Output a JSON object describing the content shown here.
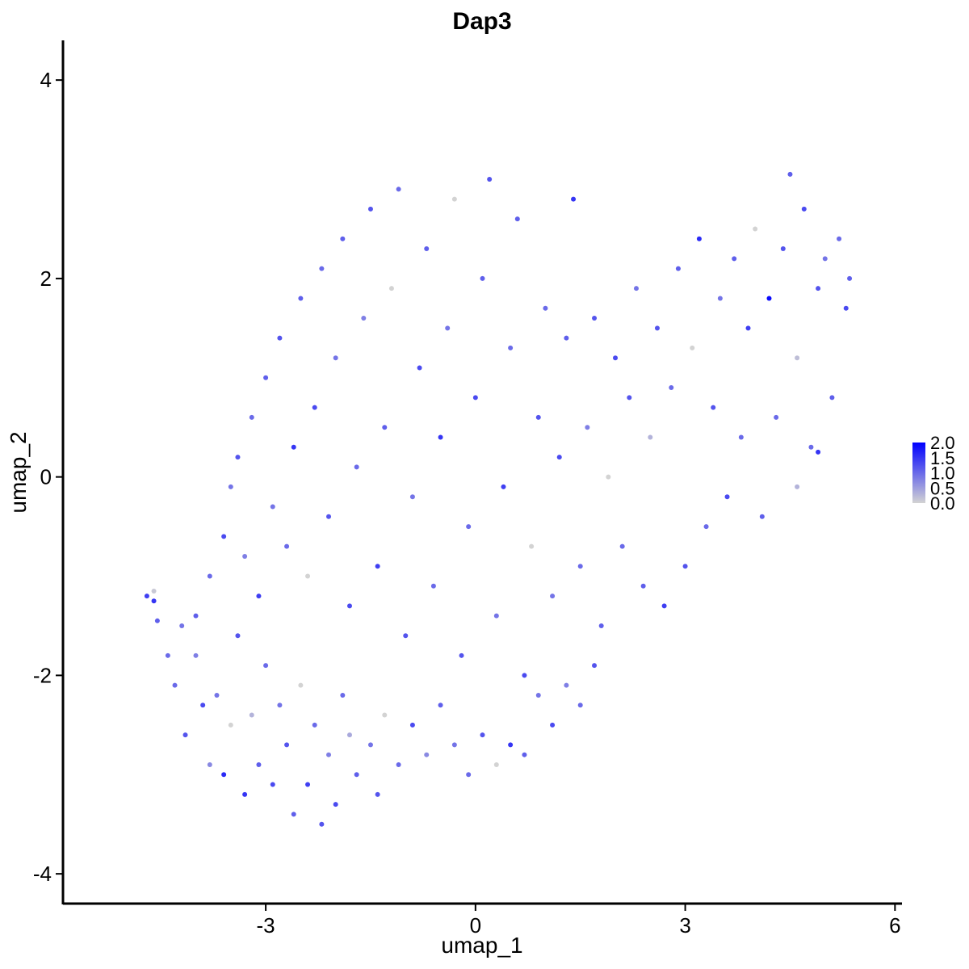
{
  "chart_data": {
    "type": "scatter",
    "title": "Dap3",
    "xlabel": "umap_1",
    "ylabel": "umap_2",
    "xlim": [
      -5.9,
      6.1
    ],
    "ylim": [
      -4.3,
      4.4
    ],
    "x_ticks": [
      -3,
      0,
      3,
      6
    ],
    "y_ticks": [
      -4,
      -2,
      0,
      2,
      4
    ],
    "x_tick_labels": [
      "-3",
      "0",
      "3",
      "6"
    ],
    "y_tick_labels": [
      "-4",
      "-2",
      "0",
      "2",
      "4"
    ],
    "grid": false,
    "legend": {
      "placement": "right",
      "type": "colorbar",
      "min": 0.0,
      "max": 2.0,
      "labels": [
        "2.0",
        "1.5",
        "1.0",
        "0.5",
        "0.0"
      ],
      "low_color": "#d3d3d3",
      "high_color": "#0000ff"
    },
    "colors": {
      "low": "#d3d3d3",
      "high": "#0000ff"
    },
    "points": [
      [
        -4.7,
        -1.2,
        1.4
      ],
      [
        -4.6,
        -1.15,
        0.1
      ],
      [
        -4.6,
        -1.25,
        1.5
      ],
      [
        -4.55,
        -1.45,
        1.1
      ],
      [
        -4.4,
        -1.8,
        1.0
      ],
      [
        -4.3,
        -2.1,
        1.0
      ],
      [
        -4.2,
        -1.5,
        0.9
      ],
      [
        -4.15,
        -2.6,
        1.2
      ],
      [
        -4.0,
        -1.8,
        0.8
      ],
      [
        -3.9,
        -2.3,
        1.3
      ],
      [
        -3.8,
        -2.9,
        0.7
      ],
      [
        -3.7,
        -2.2,
        0.9
      ],
      [
        -3.6,
        -3.0,
        1.6
      ],
      [
        -3.5,
        -2.5,
        0.0
      ],
      [
        -3.4,
        -1.6,
        1.2
      ],
      [
        -3.3,
        -3.2,
        1.5
      ],
      [
        -3.2,
        -2.4,
        0.3
      ],
      [
        -3.1,
        -2.9,
        1.1
      ],
      [
        -3.0,
        -1.9,
        1.0
      ],
      [
        -2.9,
        -3.1,
        1.3
      ],
      [
        -2.8,
        -2.3,
        0.9
      ],
      [
        -2.7,
        -2.7,
        1.2
      ],
      [
        -2.6,
        -3.4,
        1.1
      ],
      [
        -2.5,
        -2.1,
        0.0
      ],
      [
        -2.4,
        -3.1,
        1.4
      ],
      [
        -2.3,
        -2.5,
        1.0
      ],
      [
        -2.2,
        -3.5,
        1.2
      ],
      [
        -2.1,
        -2.8,
        0.8
      ],
      [
        -2.0,
        -3.3,
        1.3
      ],
      [
        -1.9,
        -2.2,
        1.0
      ],
      [
        -1.8,
        -2.6,
        0.4
      ],
      [
        -1.7,
        -3.0,
        1.1
      ],
      [
        -1.5,
        -2.7,
        0.9
      ],
      [
        -1.4,
        -3.2,
        1.2
      ],
      [
        -1.3,
        -2.4,
        0.0
      ],
      [
        -1.1,
        -2.9,
        1.0
      ],
      [
        -0.9,
        -2.5,
        1.3
      ],
      [
        -0.7,
        -2.8,
        0.7
      ],
      [
        -0.5,
        -2.3,
        1.1
      ],
      [
        -0.3,
        -2.7,
        0.9
      ],
      [
        -0.1,
        -3.0,
        1.0
      ],
      [
        0.1,
        -2.6,
        1.2
      ],
      [
        0.3,
        -2.9,
        0.0
      ],
      [
        0.5,
        -2.7,
        1.5
      ],
      [
        0.7,
        -2.8,
        1.1
      ],
      [
        0.9,
        -2.2,
        0.9
      ],
      [
        1.1,
        -2.5,
        1.3
      ],
      [
        1.3,
        -2.1,
        0.8
      ],
      [
        1.5,
        -2.3,
        1.0
      ],
      [
        1.7,
        -1.9,
        1.2
      ],
      [
        -4.0,
        -1.4,
        1.1
      ],
      [
        -3.8,
        -1.0,
        1.0
      ],
      [
        -3.6,
        -0.6,
        1.3
      ],
      [
        -3.5,
        -0.1,
        0.9
      ],
      [
        -3.4,
        0.2,
        1.2
      ],
      [
        -3.3,
        -0.8,
        0.8
      ],
      [
        -3.2,
        0.6,
        1.0
      ],
      [
        -3.1,
        -1.2,
        1.4
      ],
      [
        -3.0,
        1.0,
        1.1
      ],
      [
        -2.9,
        -0.3,
        0.9
      ],
      [
        -2.8,
        1.4,
        1.2
      ],
      [
        -2.7,
        -0.7,
        1.0
      ],
      [
        -2.6,
        0.3,
        1.5
      ],
      [
        -2.5,
        1.8,
        1.1
      ],
      [
        -2.4,
        -1.0,
        0.0
      ],
      [
        -2.3,
        0.7,
        1.3
      ],
      [
        -2.2,
        2.1,
        1.0
      ],
      [
        -2.1,
        -0.4,
        1.2
      ],
      [
        -2.0,
        1.2,
        0.9
      ],
      [
        -1.9,
        2.4,
        1.1
      ],
      [
        -1.8,
        -1.3,
        1.3
      ],
      [
        -1.7,
        0.1,
        1.0
      ],
      [
        -1.6,
        1.6,
        0.8
      ],
      [
        -1.5,
        2.7,
        1.2
      ],
      [
        -1.4,
        -0.9,
        1.4
      ],
      [
        -1.3,
        0.5,
        1.1
      ],
      [
        -1.2,
        1.9,
        0.0
      ],
      [
        -1.1,
        2.9,
        1.0
      ],
      [
        -1.0,
        -1.6,
        1.2
      ],
      [
        -0.9,
        -0.2,
        0.9
      ],
      [
        -0.8,
        1.1,
        1.3
      ],
      [
        -0.7,
        2.3,
        1.1
      ],
      [
        -0.6,
        -1.1,
        1.0
      ],
      [
        -0.5,
        0.4,
        1.5
      ],
      [
        -0.4,
        1.5,
        0.9
      ],
      [
        -0.3,
        2.8,
        0.0
      ],
      [
        -0.2,
        -1.8,
        1.2
      ],
      [
        -0.1,
        -0.5,
        1.0
      ],
      [
        0.0,
        0.8,
        1.3
      ],
      [
        0.1,
        2.0,
        1.1
      ],
      [
        0.2,
        3.0,
        1.2
      ],
      [
        0.3,
        -1.4,
        0.9
      ],
      [
        0.4,
        -0.1,
        1.4
      ],
      [
        0.5,
        1.3,
        1.0
      ],
      [
        0.6,
        2.6,
        1.1
      ],
      [
        0.7,
        -2.0,
        1.3
      ],
      [
        0.8,
        -0.7,
        0.0
      ],
      [
        0.9,
        0.6,
        1.2
      ],
      [
        1.0,
        1.7,
        1.0
      ],
      [
        1.1,
        -1.2,
        0.9
      ],
      [
        1.2,
        0.2,
        1.3
      ],
      [
        1.3,
        1.4,
        1.1
      ],
      [
        1.4,
        2.8,
        1.5
      ],
      [
        1.5,
        -0.9,
        1.0
      ],
      [
        1.6,
        0.5,
        0.8
      ],
      [
        1.7,
        1.6,
        1.2
      ],
      [
        1.8,
        -1.5,
        1.1
      ],
      [
        1.9,
        0.0,
        0.0
      ],
      [
        2.0,
        1.2,
        1.3
      ],
      [
        2.1,
        -0.7,
        1.0
      ],
      [
        2.2,
        0.8,
        1.2
      ],
      [
        2.3,
        1.9,
        0.9
      ],
      [
        2.4,
        -1.1,
        1.1
      ],
      [
        2.5,
        0.4,
        0.3
      ],
      [
        2.6,
        1.5,
        1.2
      ],
      [
        2.7,
        -1.3,
        1.4
      ],
      [
        2.8,
        0.9,
        1.0
      ],
      [
        2.9,
        2.1,
        1.1
      ],
      [
        3.0,
        -0.9,
        1.2
      ],
      [
        3.1,
        1.3,
        0.0
      ],
      [
        3.2,
        2.4,
        1.6
      ],
      [
        3.3,
        -0.5,
        1.0
      ],
      [
        3.4,
        0.7,
        1.2
      ],
      [
        3.5,
        1.8,
        0.9
      ],
      [
        3.6,
        -0.2,
        1.3
      ],
      [
        3.7,
        2.2,
        1.1
      ],
      [
        3.8,
        0.4,
        1.0
      ],
      [
        3.9,
        1.5,
        1.4
      ],
      [
        4.0,
        2.5,
        0.0
      ],
      [
        4.1,
        -0.4,
        1.1
      ],
      [
        4.2,
        1.8,
        1.9
      ],
      [
        4.3,
        0.6,
        1.0
      ],
      [
        4.4,
        2.3,
        1.2
      ],
      [
        4.5,
        3.05,
        1.1
      ],
      [
        4.6,
        1.2,
        0.2
      ],
      [
        4.7,
        2.7,
        1.3
      ],
      [
        4.8,
        0.3,
        1.0
      ],
      [
        4.9,
        1.9,
        1.2
      ],
      [
        5.0,
        2.2,
        0.9
      ],
      [
        5.1,
        0.8,
        1.1
      ],
      [
        5.2,
        2.4,
        1.0
      ],
      [
        5.3,
        1.7,
        1.3
      ],
      [
        5.35,
        2.0,
        1.1
      ],
      [
        4.9,
        0.25,
        1.5
      ],
      [
        4.6,
        -0.1,
        0.3
      ]
    ]
  }
}
